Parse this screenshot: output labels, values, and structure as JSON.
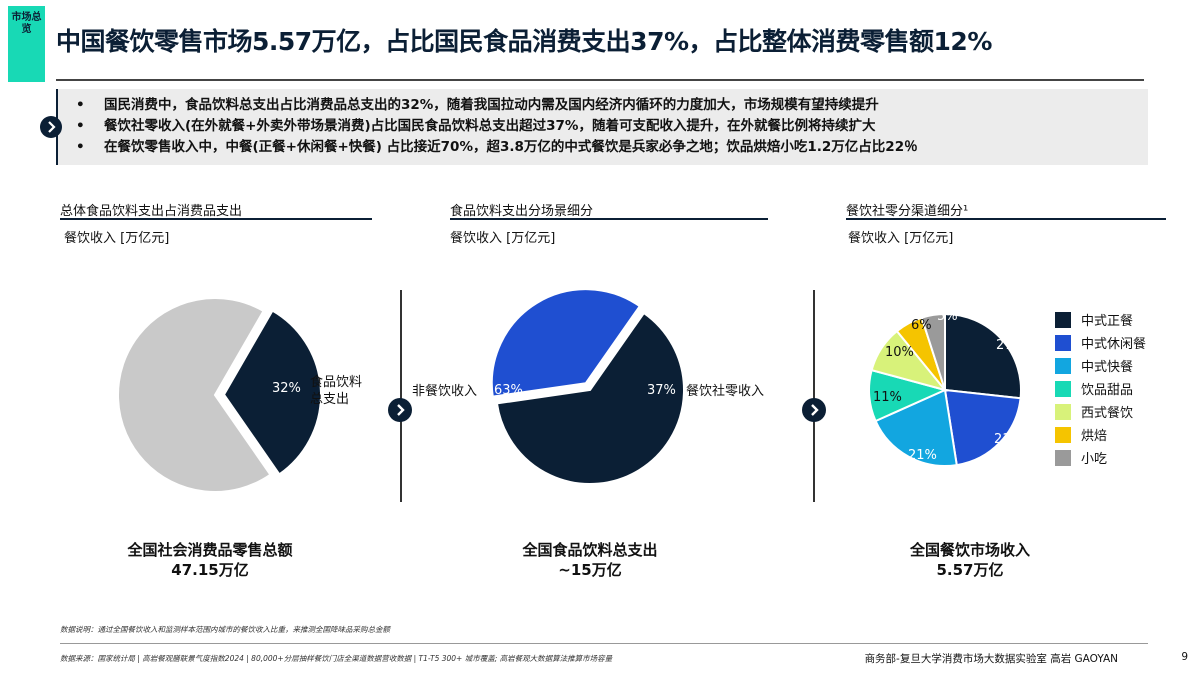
{
  "header": {
    "tag": "市场总览",
    "title": "中国餐饮零售市场5.57万亿，占比国民食品消费支出37%，占比整体消费零售额12%"
  },
  "bullets": [
    "国民消费中，食品饮料总支出占比消费品总支出的32%，随着我国拉动内需及国内经济内循环的力度加大，市场规模有望持续提升",
    "餐饮社零收入(在外就餐+外卖外带场景消费)占比国民食品饮料总支出超过37%，随着可支配收入提升，在外就餐比例将持续扩大",
    "在餐饮零售收入中，中餐(正餐+休闲餐+快餐) 占比接近70%，超3.8万亿的中式餐饮是兵家必争之地；饮品烘焙小吃1.2万亿占比22％"
  ],
  "colors": {
    "navy": "#0b1f35",
    "blue": "#1f4fd1",
    "teal": "#18d9b5",
    "gray": "#c9c9c9"
  },
  "panels": [
    {
      "title": "总体食品饮料支出占消费品支出",
      "unit": "餐饮收入 [万亿元]",
      "caption_line1": "全国社会消费品零售总额",
      "caption_line2": "47.15万亿"
    },
    {
      "title": "食品饮料支出分场景细分",
      "unit": "餐饮收入 [万亿元]",
      "caption_line1": "全国食品饮料总支出",
      "caption_line2": "~15万亿"
    },
    {
      "title": "餐饮社零分渠道细分¹",
      "unit": "餐饮收入 [万亿元]",
      "caption_line1": "全国餐饮市场收入",
      "caption_line2": "5.57万亿"
    }
  ],
  "chart_data": [
    {
      "type": "pie",
      "slices": [
        {
          "name": "食品饮料总支出",
          "value": 32,
          "label": "32%",
          "color": "#0b1f35",
          "exploded": true
        },
        {
          "name": "",
          "value": 68,
          "label": "",
          "color": "#c9c9c9"
        }
      ],
      "annotation_line1": "食品饮料",
      "annotation_line2": "总支出"
    },
    {
      "type": "pie",
      "slices": [
        {
          "name": "非餐饮收入",
          "value": 63,
          "label": "63%",
          "color": "#0b1f35"
        },
        {
          "name": "餐饮社零收入",
          "value": 37,
          "label": "37%",
          "color": "#1f4fd1",
          "exploded": true
        }
      ]
    },
    {
      "type": "pie",
      "slices": [
        {
          "name": "中式正餐",
          "value": 27,
          "label": "27%",
          "color": "#0b1f35"
        },
        {
          "name": "中式休闲餐",
          "value": 21,
          "label": "21%",
          "color": "#1f4fd1"
        },
        {
          "name": "中式快餐",
          "value": 21,
          "label": "21%",
          "color": "#12a6e0"
        },
        {
          "name": "饮品甜品",
          "value": 11,
          "label": "11%",
          "color": "#18d9b5"
        },
        {
          "name": "西式餐饮",
          "value": 10,
          "label": "10%",
          "color": "#d8f27a"
        },
        {
          "name": "烘焙",
          "value": 6,
          "label": "6%",
          "color": "#f5c400"
        },
        {
          "name": "小吃",
          "value": 5,
          "label": "5%",
          "color": "#9a9a9a"
        }
      ]
    }
  ],
  "footer": {
    "note": "数据说明：通过全国餐饮收入和监测样本范围内城市的餐饮收入比重，来推测全国降味品采购总金额",
    "source": "数据来源：国家统计局 | 高岩餐观膳联景气度指数2024 | 80,000+分层抽样餐饮门店全渠道数据营收数据 | T1-T5 300+ 城市覆盖; 高岩餐观大数据算法推算市场容量",
    "org": "商务部-复旦大学消费市场大数据实验室   高岩 GAOYAN",
    "page": "9"
  }
}
